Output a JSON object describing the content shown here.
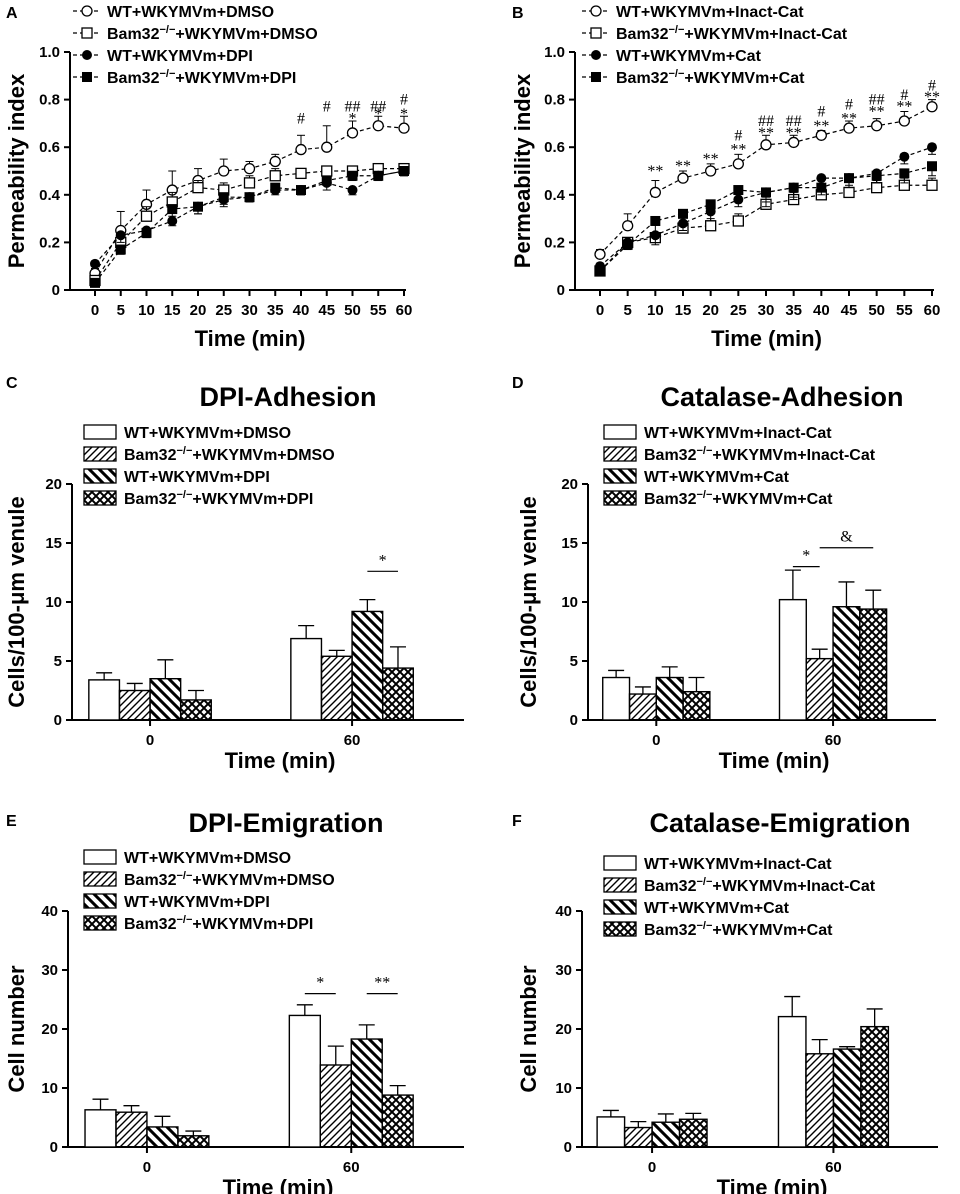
{
  "chart_data": [
    {
      "type": "line",
      "panel": "A",
      "ylabel": "Permeability index",
      "xlabel": "Time (min)",
      "x": [
        0,
        5,
        10,
        15,
        20,
        25,
        30,
        35,
        40,
        45,
        50,
        55,
        60
      ],
      "ylim": [
        0,
        1.0
      ],
      "yticks": [
        "0",
        "0.2",
        "0.4",
        "0.6",
        "0.8",
        "1.0"
      ],
      "series": [
        {
          "name": "WT+WKYMVm+DMSO",
          "marker": "open-circle",
          "values": [
            0.07,
            0.25,
            0.36,
            0.42,
            0.46,
            0.5,
            0.51,
            0.54,
            0.59,
            0.6,
            0.66,
            0.69,
            0.68
          ],
          "err": [
            0.02,
            0.08,
            0.06,
            0.08,
            0.05,
            0.05,
            0.03,
            0.03,
            0.06,
            0.09,
            0.05,
            0.04,
            0.05
          ]
        },
        {
          "name": "Bam32−/−+WKYMVm+DMSO",
          "marker": "open-square",
          "values": [
            0.04,
            0.2,
            0.31,
            0.37,
            0.43,
            0.42,
            0.45,
            0.48,
            0.49,
            0.5,
            0.5,
            0.51,
            0.51
          ],
          "err": [
            0.02,
            0.04,
            0.04,
            0.04,
            0.03,
            0.03,
            0.03,
            0.03,
            0.02,
            0.02,
            0.02,
            0.02,
            0.02
          ]
        },
        {
          "name": "WT+WKYMVm+DPI",
          "marker": "filled-circle",
          "values": [
            0.11,
            0.23,
            0.25,
            0.29,
            0.35,
            0.38,
            0.39,
            0.42,
            0.42,
            0.45,
            0.42,
            0.48,
            0.5
          ],
          "err": [
            0.02,
            0.03,
            0.02,
            0.02,
            0.03,
            0.03,
            0.02,
            0.02,
            0.02,
            0.03,
            0.02,
            0.02,
            0.02
          ]
        },
        {
          "name": "Bam32−/−+WKYMVm+DPI",
          "marker": "filled-square",
          "values": [
            0.03,
            0.17,
            0.24,
            0.34,
            0.35,
            0.39,
            0.39,
            0.43,
            0.42,
            0.46,
            0.48,
            0.48,
            0.5
          ],
          "err": [
            0.01,
            0.02,
            0.02,
            0.03,
            0.03,
            0.03,
            0.02,
            0.02,
            0.02,
            0.02,
            0.02,
            0.02,
            0.02
          ]
        }
      ],
      "annotations": [
        {
          "x": 40,
          "y": 0.72,
          "text": "#"
        },
        {
          "x": 45,
          "y": 0.77,
          "text": "#"
        },
        {
          "x": 50,
          "y": 0.77,
          "text": "##"
        },
        {
          "x": 50,
          "y": 0.72,
          "text": "*"
        },
        {
          "x": 55,
          "y": 0.77,
          "text": "##"
        },
        {
          "x": 55,
          "y": 0.74,
          "text": "*"
        },
        {
          "x": 60,
          "y": 0.8,
          "text": "#"
        },
        {
          "x": 60,
          "y": 0.74,
          "text": "*"
        }
      ]
    },
    {
      "type": "line",
      "panel": "B",
      "ylabel": "Permeability index",
      "xlabel": "Time (min)",
      "x": [
        0,
        5,
        10,
        15,
        20,
        25,
        30,
        35,
        40,
        45,
        50,
        55,
        60
      ],
      "ylim": [
        0,
        1.0
      ],
      "yticks": [
        "0",
        "0.2",
        "0.4",
        "0.6",
        "0.8",
        "1.0"
      ],
      "series": [
        {
          "name": "WT+WKYMVm+Inact-Cat",
          "marker": "open-circle",
          "values": [
            0.15,
            0.27,
            0.41,
            0.47,
            0.5,
            0.53,
            0.61,
            0.62,
            0.65,
            0.68,
            0.69,
            0.71,
            0.77
          ],
          "err": [
            0.02,
            0.05,
            0.05,
            0.03,
            0.03,
            0.04,
            0.04,
            0.03,
            0.02,
            0.03,
            0.03,
            0.04,
            0.03
          ]
        },
        {
          "name": "Bam32−/−+WKYMVm+Inact-Cat",
          "marker": "open-square",
          "values": [
            0.08,
            0.2,
            0.22,
            0.26,
            0.27,
            0.29,
            0.36,
            0.38,
            0.4,
            0.41,
            0.43,
            0.44,
            0.44
          ],
          "err": [
            0.02,
            0.02,
            0.02,
            0.03,
            0.03,
            0.03,
            0.03,
            0.03,
            0.02,
            0.02,
            0.03,
            0.03,
            0.03
          ]
        },
        {
          "name": "WT+WKYMVm+Cat",
          "marker": "filled-circle",
          "values": [
            0.1,
            0.2,
            0.23,
            0.28,
            0.33,
            0.38,
            0.41,
            0.43,
            0.47,
            0.47,
            0.49,
            0.56,
            0.6
          ],
          "err": [
            0.02,
            0.02,
            0.04,
            0.03,
            0.04,
            0.03,
            0.04,
            0.04,
            0.03,
            0.04,
            0.04,
            0.03,
            0.03
          ]
        },
        {
          "name": "Bam32−/−+WKYMVm+Cat",
          "marker": "filled-square",
          "values": [
            0.08,
            0.19,
            0.29,
            0.32,
            0.36,
            0.42,
            0.41,
            0.43,
            0.43,
            0.47,
            0.48,
            0.49,
            0.52
          ],
          "err": [
            0.02,
            0.02,
            0.06,
            0.04,
            0.03,
            0.05,
            0.06,
            0.05,
            0.03,
            0.03,
            0.03,
            0.04,
            0.04
          ]
        }
      ],
      "annotations": [
        {
          "x": 10,
          "y": 0.5,
          "text": "**"
        },
        {
          "x": 15,
          "y": 0.52,
          "text": "**"
        },
        {
          "x": 20,
          "y": 0.55,
          "text": "**"
        },
        {
          "x": 25,
          "y": 0.65,
          "text": "#"
        },
        {
          "x": 25,
          "y": 0.59,
          "text": "**"
        },
        {
          "x": 30,
          "y": 0.71,
          "text": "##"
        },
        {
          "x": 30,
          "y": 0.66,
          "text": "**"
        },
        {
          "x": 35,
          "y": 0.71,
          "text": "##"
        },
        {
          "x": 35,
          "y": 0.66,
          "text": "**"
        },
        {
          "x": 40,
          "y": 0.75,
          "text": "#"
        },
        {
          "x": 40,
          "y": 0.69,
          "text": "**"
        },
        {
          "x": 45,
          "y": 0.78,
          "text": "#"
        },
        {
          "x": 45,
          "y": 0.72,
          "text": "**"
        },
        {
          "x": 50,
          "y": 0.8,
          "text": "##"
        },
        {
          "x": 50,
          "y": 0.75,
          "text": "**"
        },
        {
          "x": 55,
          "y": 0.82,
          "text": "#"
        },
        {
          "x": 55,
          "y": 0.77,
          "text": "**"
        },
        {
          "x": 60,
          "y": 0.86,
          "text": "#"
        },
        {
          "x": 60,
          "y": 0.81,
          "text": "**"
        }
      ]
    },
    {
      "type": "bar",
      "panel": "C",
      "title": "DPI-Adhesion",
      "ylabel": "Cells/100-μm venule",
      "xlabel": "Time (min)",
      "categories": [
        "0",
        "60"
      ],
      "ylim": [
        0,
        20
      ],
      "yticks": [
        "0",
        "5",
        "10",
        "15",
        "20"
      ],
      "series": [
        {
          "name": "WT+WKYMVm+DMSO",
          "pattern": "none",
          "values": [
            3.4,
            6.9
          ],
          "err": [
            0.6,
            1.1
          ]
        },
        {
          "name": "Bam32−/−+WKYMVm+DMSO",
          "pattern": "diag",
          "values": [
            2.5,
            5.4
          ],
          "err": [
            0.6,
            0.5
          ]
        },
        {
          "name": "WT+WKYMVm+DPI",
          "pattern": "back",
          "values": [
            3.5,
            9.2
          ],
          "err": [
            1.6,
            1.0
          ]
        },
        {
          "name": "Bam32−/−+WKYMVm+DPI",
          "pattern": "cross",
          "values": [
            1.7,
            4.4
          ],
          "err": [
            0.8,
            1.8
          ]
        }
      ],
      "comparisons": [
        {
          "cat": 1,
          "from": 2,
          "to": 3,
          "y": 12.6,
          "text": "*"
        }
      ]
    },
    {
      "type": "bar",
      "panel": "D",
      "title": "Catalase-Adhesion",
      "ylabel": "Cells/100-μm venule",
      "xlabel": "Time (min)",
      "categories": [
        "0",
        "60"
      ],
      "ylim": [
        0,
        20
      ],
      "yticks": [
        "0",
        "5",
        "10",
        "15",
        "20"
      ],
      "series": [
        {
          "name": "WT+WKYMVm+Inact-Cat",
          "pattern": "none",
          "values": [
            3.6,
            10.2
          ],
          "err": [
            0.6,
            2.5
          ]
        },
        {
          "name": "Bam32−/−+WKYMVm+Inact-Cat",
          "pattern": "diag",
          "values": [
            2.2,
            5.2
          ],
          "err": [
            0.6,
            0.8
          ]
        },
        {
          "name": "WT+WKYMVm+Cat",
          "pattern": "back",
          "values": [
            3.6,
            9.6
          ],
          "err": [
            0.9,
            2.1
          ]
        },
        {
          "name": "Bam32−/−+WKYMVm+Cat",
          "pattern": "cross",
          "values": [
            2.4,
            9.4
          ],
          "err": [
            1.2,
            1.6
          ]
        }
      ],
      "comparisons": [
        {
          "cat": 1,
          "from": 0,
          "to": 1,
          "y": 13.0,
          "text": "*"
        },
        {
          "cat": 1,
          "from": 1,
          "to": 3,
          "y": 14.6,
          "text": "&"
        }
      ]
    },
    {
      "type": "bar",
      "panel": "E",
      "title": "DPI-Emigration",
      "ylabel": "Cell number",
      "xlabel": "Time (min)",
      "categories": [
        "0",
        "60"
      ],
      "ylim": [
        0,
        40
      ],
      "yticks": [
        "0",
        "10",
        "20",
        "30",
        "40"
      ],
      "series": [
        {
          "name": "WT+WKYMVm+DMSO",
          "pattern": "none",
          "values": [
            6.3,
            22.3
          ],
          "err": [
            1.8,
            1.8
          ]
        },
        {
          "name": "Bam32−/−+WKYMVm+DMSO",
          "pattern": "diag",
          "values": [
            5.9,
            13.9
          ],
          "err": [
            1.1,
            3.2
          ]
        },
        {
          "name": "WT+WKYMVm+DPI",
          "pattern": "back",
          "values": [
            3.4,
            18.3
          ],
          "err": [
            1.8,
            2.4
          ]
        },
        {
          "name": "Bam32−/−+WKYMVm+DPI",
          "pattern": "cross",
          "values": [
            1.9,
            8.8
          ],
          "err": [
            0.8,
            1.6
          ]
        }
      ],
      "comparisons": [
        {
          "cat": 1,
          "from": 0,
          "to": 1,
          "y": 26.0,
          "text": "*"
        },
        {
          "cat": 1,
          "from": 2,
          "to": 3,
          "y": 26.0,
          "text": "**"
        }
      ]
    },
    {
      "type": "bar",
      "panel": "F",
      "title": "Catalase-Emigration",
      "ylabel": "Cell number",
      "xlabel": "Time (min)",
      "categories": [
        "0",
        "60"
      ],
      "ylim": [
        0,
        40
      ],
      "yticks": [
        "0",
        "10",
        "20",
        "30",
        "40"
      ],
      "series": [
        {
          "name": "WT+WKYMVm+Inact-Cat",
          "pattern": "none",
          "values": [
            5.1,
            22.1
          ],
          "err": [
            1.1,
            3.4
          ]
        },
        {
          "name": "Bam32−/−+WKYMVm+Inact-Cat",
          "pattern": "diag",
          "values": [
            3.3,
            15.8
          ],
          "err": [
            1.0,
            2.4
          ]
        },
        {
          "name": "WT+WKYMVm+Cat",
          "pattern": "back",
          "values": [
            4.2,
            16.6
          ],
          "err": [
            1.4,
            0.4
          ]
        },
        {
          "name": "Bam32−/−+WKYMVm+Cat",
          "pattern": "cross",
          "values": [
            4.7,
            20.4
          ],
          "err": [
            1.0,
            3.0
          ]
        }
      ],
      "comparisons": []
    }
  ]
}
